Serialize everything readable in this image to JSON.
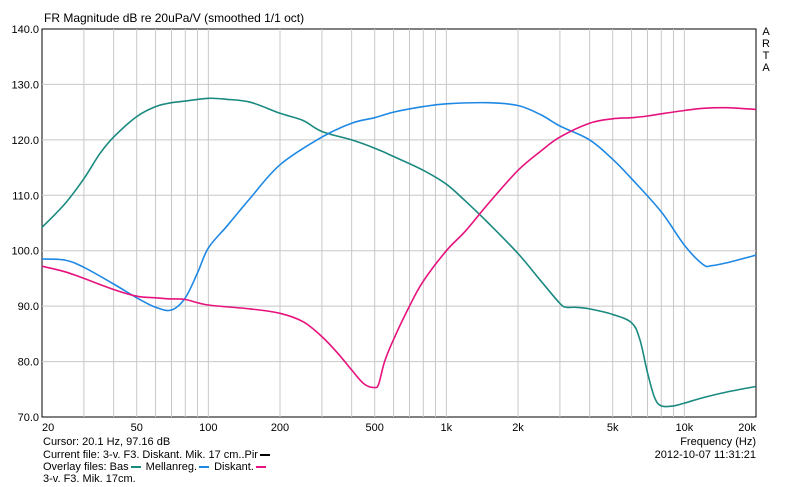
{
  "chart_data": {
    "type": "line",
    "title": "FR Magnitude dB re 20uPa/V (smoothed 1/1 oct)",
    "xlabel": "Frequency (Hz)",
    "ylabel": "",
    "x_scale": "log",
    "xlim": [
      20,
      20000
    ],
    "ylim": [
      70,
      140
    ],
    "grid": true,
    "y_ticks": [
      "140.0",
      "130.0",
      "120.0",
      "110.0",
      "100.0",
      "90.0",
      "80.0",
      "70.0"
    ],
    "x_tick_values": [
      20,
      50,
      100,
      200,
      500,
      1000,
      2000,
      5000,
      10000,
      20000
    ],
    "x_tick_labels": [
      "20",
      "50",
      "100",
      "200",
      "500",
      "1k",
      "2k",
      "5k",
      "10k",
      "20k"
    ],
    "series": [
      {
        "name": "Bas",
        "color": "#1a8a80",
        "x": [
          20,
          25,
          30,
          35,
          40,
          50,
          60,
          70,
          80,
          100,
          120,
          150,
          200,
          250,
          300,
          400,
          500,
          600,
          800,
          1000,
          1200,
          1500,
          2000,
          2500,
          3000,
          3200,
          3500,
          4000,
          5000,
          6000,
          6500,
          7000,
          7500,
          8000,
          9000,
          10000,
          12000,
          15000,
          20000
        ],
        "y": [
          104.2,
          108.5,
          113,
          117.5,
          120.5,
          124.2,
          126,
          126.7,
          127,
          127.5,
          127.3,
          126.8,
          124.8,
          123.5,
          121.5,
          120,
          118.5,
          117,
          114.5,
          112,
          109,
          105,
          99.5,
          94.5,
          90.5,
          89.8,
          89.8,
          89.5,
          88.5,
          87,
          84,
          78,
          73.5,
          72,
          72,
          72.5,
          73.5,
          74.5,
          75.5
        ]
      },
      {
        "name": "Mellanreg.",
        "color": "#1e88e5",
        "x": [
          20,
          25,
          30,
          40,
          50,
          60,
          70,
          80,
          90,
          100,
          120,
          150,
          200,
          300,
          400,
          500,
          600,
          800,
          1000,
          1500,
          2000,
          2500,
          3000,
          4000,
          5000,
          6000,
          8000,
          10000,
          12000,
          13000,
          15000,
          20000
        ],
        "y": [
          98.5,
          98.3,
          97,
          94,
          91.5,
          89.8,
          89.3,
          91.5,
          96,
          100.5,
          104.5,
          109.5,
          115.5,
          120.5,
          123,
          124,
          125,
          126,
          126.5,
          126.7,
          126.2,
          124.5,
          122.5,
          120,
          116.5,
          113,
          107,
          101,
          97.5,
          97.3,
          97.8,
          99.2
        ]
      },
      {
        "name": "Diskant.",
        "color": "#e6127d",
        "x": [
          20,
          25,
          30,
          40,
          50,
          60,
          70,
          80,
          100,
          150,
          200,
          250,
          300,
          350,
          400,
          450,
          500,
          520,
          550,
          600,
          700,
          800,
          1000,
          1200,
          1500,
          2000,
          2500,
          3000,
          4000,
          5000,
          6000,
          7000,
          8000,
          10000,
          12000,
          15000,
          20000
        ],
        "y": [
          97.2,
          96.2,
          95,
          93,
          91.8,
          91.5,
          91.3,
          91.2,
          90.2,
          89.5,
          88.7,
          87.2,
          84.5,
          81.5,
          78.5,
          76,
          75.3,
          76,
          80,
          84,
          90,
          94.5,
          100,
          103.5,
          108.5,
          114.5,
          118,
          120.5,
          123,
          123.8,
          124,
          124.3,
          124.7,
          125.3,
          125.7,
          125.8,
          125.5
        ]
      },
      {
        "name": "3-v. F3. Mik. 17cm.",
        "color": "#000000",
        "x": [],
        "y": []
      }
    ]
  },
  "info": {
    "cursor": "Cursor: 20.1 Hz, 97.16 dB",
    "current_file": "Current file: 3-v. F3. Diskant. Mik. 17 cm..Pir",
    "overlay_prefix": "Overlay files:",
    "overlay_items": [
      {
        "label": "Bas",
        "color": "#1a8a80"
      },
      {
        "label": "Mellanreg.",
        "color": "#1e88e5"
      },
      {
        "label": "Diskant.",
        "color": "#e6127d"
      }
    ],
    "overlay_line2": "3-v. F3. Mik. 17cm.",
    "freq_label": "Frequency (Hz)",
    "date": "2012-10-07  11:31:21",
    "brand_letters": [
      "A",
      "R",
      "T",
      "A"
    ]
  }
}
